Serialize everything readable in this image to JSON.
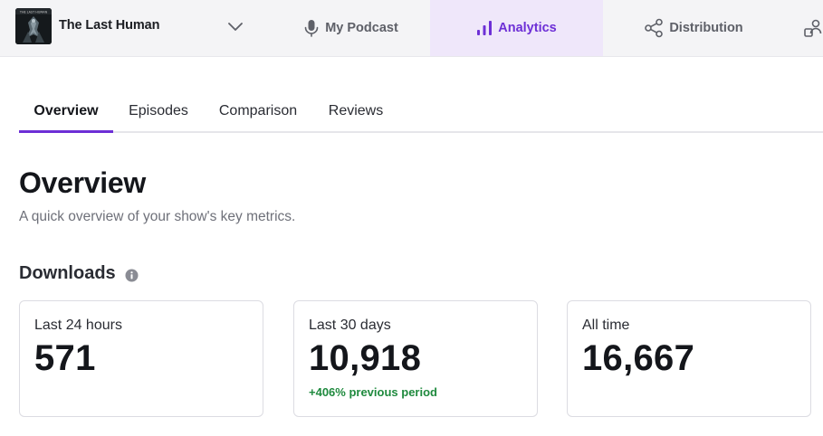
{
  "header": {
    "podcast_name": "The Last Human",
    "cover_text": "THE LAST HUMAN",
    "nav": [
      {
        "label": "My Podcast",
        "icon": "microphone-icon"
      },
      {
        "label": "Analytics",
        "icon": "bar-chart-icon",
        "active": true
      },
      {
        "label": "Distribution",
        "icon": "share-icon"
      },
      {
        "label": "",
        "icon": "people-icon"
      }
    ]
  },
  "subtabs": [
    {
      "label": "Overview",
      "active": true
    },
    {
      "label": "Episodes"
    },
    {
      "label": "Comparison"
    },
    {
      "label": "Reviews"
    }
  ],
  "page": {
    "title": "Overview",
    "subtitle": "A quick overview of your show's key metrics."
  },
  "downloads": {
    "title": "Downloads",
    "cards": [
      {
        "label": "Last 24 hours",
        "value": "571"
      },
      {
        "label": "Last 30 days",
        "value": "10,918",
        "change": "+406% previous period"
      },
      {
        "label": "All time",
        "value": "16,667"
      }
    ]
  },
  "colors": {
    "accent": "#6d2fd6",
    "active_tab_bg": "#efe7fa",
    "positive": "#1f8a3e"
  }
}
